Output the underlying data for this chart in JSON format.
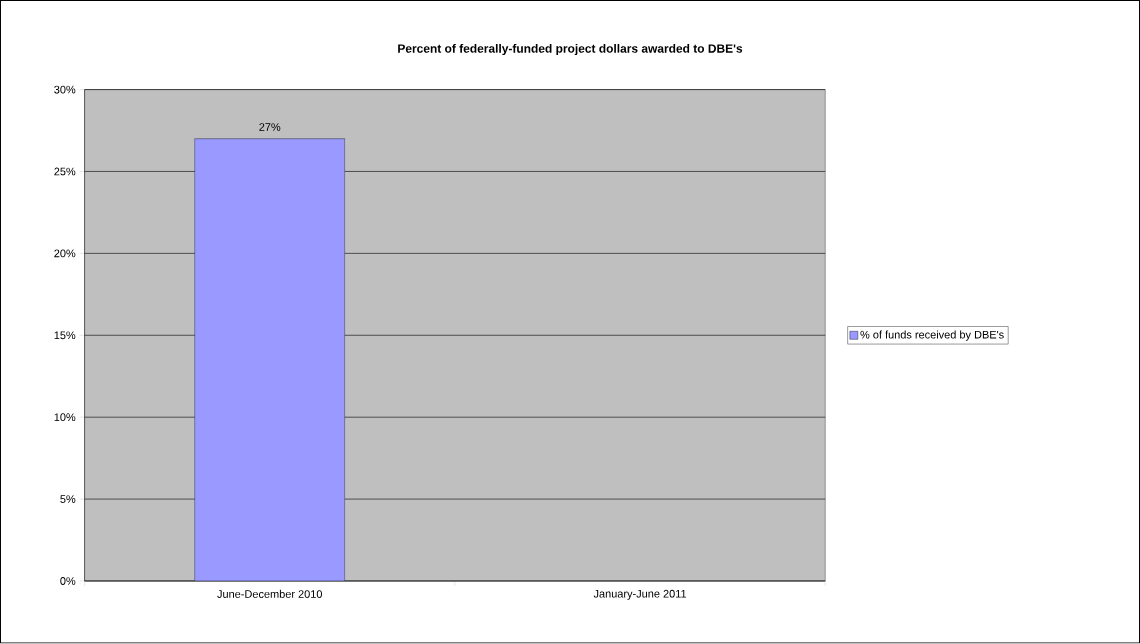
{
  "chart_data": {
    "type": "bar",
    "title": "Percent of federally-funded project dollars awarded to DBE's",
    "categories": [
      "June-December 2010",
      "January-June 2011"
    ],
    "series": [
      {
        "name": "% of funds received by DBE's",
        "color": "#9999ff",
        "values": [
          27,
          null
        ],
        "value_labels": [
          "27%",
          null
        ]
      }
    ],
    "ylim": [
      0,
      30
    ],
    "yticks": [
      {
        "value": 0,
        "label": "0%"
      },
      {
        "value": 5,
        "label": "5%"
      },
      {
        "value": 10,
        "label": "10%"
      },
      {
        "value": 15,
        "label": "15%"
      },
      {
        "value": 20,
        "label": "20%"
      },
      {
        "value": 25,
        "label": "25%"
      },
      {
        "value": 30,
        "label": "30%"
      }
    ],
    "grid": "y",
    "legend": "right"
  }
}
